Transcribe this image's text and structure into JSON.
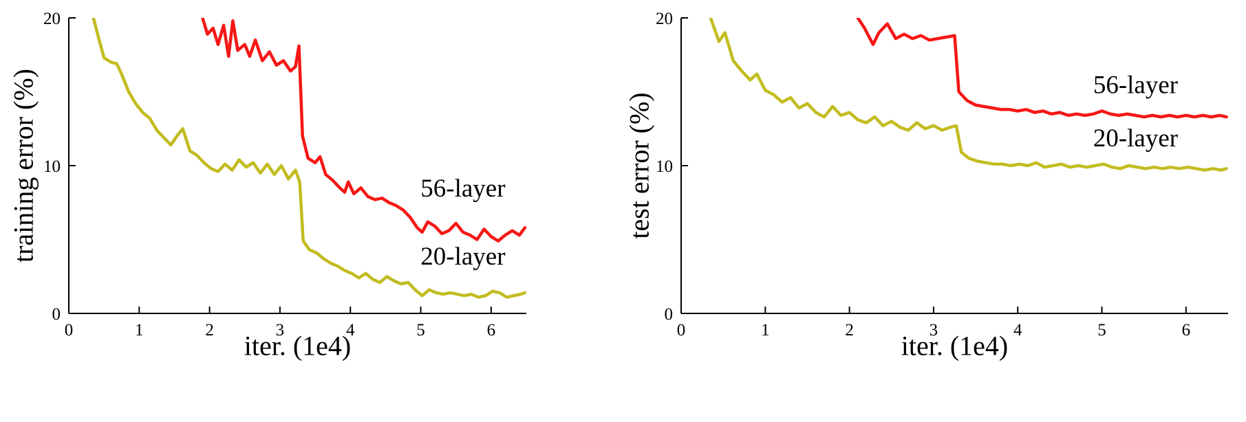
{
  "figure": {
    "background": "#ffffff"
  },
  "colors": {
    "layer56": "#f51715",
    "layer20": "#c2bc20",
    "axis": "#000000"
  },
  "chart_data": [
    {
      "type": "line",
      "title": "",
      "xlabel": "iter. (1e4)",
      "ylabel": "training error (%)",
      "xlim": [
        0,
        6.5
      ],
      "ylim": [
        0,
        20
      ],
      "xticks": [
        0,
        1,
        2,
        3,
        4,
        5,
        6
      ],
      "yticks": [
        0,
        10,
        20
      ],
      "grid": false,
      "legend_position": "inline-annotations",
      "series": [
        {
          "name": "56-layer",
          "color": "#f51715",
          "points": [
            [
              1.82,
              21.5
            ],
            [
              1.9,
              20.0
            ],
            [
              1.97,
              18.9
            ],
            [
              2.05,
              19.3
            ],
            [
              2.12,
              18.2
            ],
            [
              2.2,
              19.5
            ],
            [
              2.27,
              17.4
            ],
            [
              2.33,
              19.8
            ],
            [
              2.4,
              17.8
            ],
            [
              2.5,
              18.2
            ],
            [
              2.57,
              17.4
            ],
            [
              2.65,
              18.5
            ],
            [
              2.75,
              17.1
            ],
            [
              2.85,
              17.7
            ],
            [
              2.95,
              16.8
            ],
            [
              3.05,
              17.1
            ],
            [
              3.15,
              16.4
            ],
            [
              3.22,
              16.7
            ],
            [
              3.27,
              18.1
            ],
            [
              3.32,
              12.0
            ],
            [
              3.4,
              10.5
            ],
            [
              3.5,
              10.2
            ],
            [
              3.57,
              10.6
            ],
            [
              3.65,
              9.4
            ],
            [
              3.75,
              9.0
            ],
            [
              3.85,
              8.5
            ],
            [
              3.92,
              8.2
            ],
            [
              3.97,
              8.9
            ],
            [
              4.05,
              8.1
            ],
            [
              4.15,
              8.5
            ],
            [
              4.25,
              7.9
            ],
            [
              4.35,
              7.7
            ],
            [
              4.45,
              7.8
            ],
            [
              4.55,
              7.5
            ],
            [
              4.65,
              7.3
            ],
            [
              4.75,
              7.0
            ],
            [
              4.85,
              6.5
            ],
            [
              4.95,
              5.8
            ],
            [
              5.02,
              5.5
            ],
            [
              5.1,
              6.2
            ],
            [
              5.2,
              5.9
            ],
            [
              5.3,
              5.4
            ],
            [
              5.4,
              5.6
            ],
            [
              5.5,
              6.1
            ],
            [
              5.6,
              5.5
            ],
            [
              5.7,
              5.3
            ],
            [
              5.8,
              5.0
            ],
            [
              5.9,
              5.7
            ],
            [
              6.0,
              5.2
            ],
            [
              6.1,
              4.9
            ],
            [
              6.2,
              5.3
            ],
            [
              6.3,
              5.6
            ],
            [
              6.4,
              5.3
            ],
            [
              6.48,
              5.8
            ]
          ]
        },
        {
          "name": "20-layer",
          "color": "#c2bc20",
          "points": [
            [
              0.3,
              21.5
            ],
            [
              0.35,
              20.0
            ],
            [
              0.42,
              18.7
            ],
            [
              0.5,
              17.3
            ],
            [
              0.6,
              17.0
            ],
            [
              0.68,
              16.9
            ],
            [
              0.75,
              16.2
            ],
            [
              0.85,
              15.0
            ],
            [
              0.95,
              14.2
            ],
            [
              1.05,
              13.6
            ],
            [
              1.15,
              13.2
            ],
            [
              1.25,
              12.4
            ],
            [
              1.35,
              11.9
            ],
            [
              1.45,
              11.4
            ],
            [
              1.55,
              12.1
            ],
            [
              1.62,
              12.5
            ],
            [
              1.72,
              11.0
            ],
            [
              1.82,
              10.7
            ],
            [
              1.92,
              10.2
            ],
            [
              2.02,
              9.8
            ],
            [
              2.12,
              9.6
            ],
            [
              2.22,
              10.1
            ],
            [
              2.32,
              9.7
            ],
            [
              2.42,
              10.4
            ],
            [
              2.52,
              9.9
            ],
            [
              2.62,
              10.2
            ],
            [
              2.72,
              9.5
            ],
            [
              2.82,
              10.1
            ],
            [
              2.92,
              9.4
            ],
            [
              3.02,
              10.0
            ],
            [
              3.12,
              9.1
            ],
            [
              3.22,
              9.7
            ],
            [
              3.28,
              8.9
            ],
            [
              3.33,
              4.9
            ],
            [
              3.42,
              4.3
            ],
            [
              3.52,
              4.1
            ],
            [
              3.62,
              3.7
            ],
            [
              3.72,
              3.4
            ],
            [
              3.82,
              3.2
            ],
            [
              3.92,
              2.9
            ],
            [
              4.02,
              2.7
            ],
            [
              4.12,
              2.4
            ],
            [
              4.22,
              2.7
            ],
            [
              4.32,
              2.3
            ],
            [
              4.42,
              2.1
            ],
            [
              4.52,
              2.5
            ],
            [
              4.62,
              2.2
            ],
            [
              4.72,
              2.0
            ],
            [
              4.82,
              2.1
            ],
            [
              4.92,
              1.6
            ],
            [
              5.02,
              1.2
            ],
            [
              5.12,
              1.6
            ],
            [
              5.22,
              1.4
            ],
            [
              5.32,
              1.3
            ],
            [
              5.42,
              1.4
            ],
            [
              5.52,
              1.3
            ],
            [
              5.62,
              1.2
            ],
            [
              5.72,
              1.3
            ],
            [
              5.82,
              1.1
            ],
            [
              5.92,
              1.2
            ],
            [
              6.02,
              1.5
            ],
            [
              6.12,
              1.4
            ],
            [
              6.22,
              1.1
            ],
            [
              6.32,
              1.2
            ],
            [
              6.42,
              1.3
            ],
            [
              6.48,
              1.4
            ]
          ]
        }
      ],
      "annotations": [
        {
          "text": "56-layer",
          "x": 5.6,
          "y": 7.9,
          "color": "#000000"
        },
        {
          "text": "20-layer",
          "x": 5.6,
          "y": 3.3,
          "color": "#000000"
        }
      ]
    },
    {
      "type": "line",
      "title": "",
      "xlabel": "iter. (1e4)",
      "ylabel": "test error (%)",
      "xlim": [
        0,
        6.5
      ],
      "ylim": [
        0,
        20
      ],
      "xticks": [
        0,
        1,
        2,
        3,
        4,
        5,
        6
      ],
      "yticks": [
        0,
        10,
        20
      ],
      "grid": false,
      "legend_position": "inline-annotations",
      "series": [
        {
          "name": "56-layer",
          "color": "#f51715",
          "points": [
            [
              2.02,
              21.5
            ],
            [
              2.1,
              20.0
            ],
            [
              2.18,
              19.3
            ],
            [
              2.28,
              18.2
            ],
            [
              2.35,
              19.0
            ],
            [
              2.45,
              19.6
            ],
            [
              2.55,
              18.6
            ],
            [
              2.65,
              18.9
            ],
            [
              2.75,
              18.6
            ],
            [
              2.85,
              18.8
            ],
            [
              2.95,
              18.5
            ],
            [
              3.05,
              18.6
            ],
            [
              3.15,
              18.7
            ],
            [
              3.25,
              18.8
            ],
            [
              3.3,
              15.0
            ],
            [
              3.4,
              14.4
            ],
            [
              3.5,
              14.1
            ],
            [
              3.6,
              14.0
            ],
            [
              3.7,
              13.9
            ],
            [
              3.8,
              13.8
            ],
            [
              3.9,
              13.8
            ],
            [
              4.0,
              13.7
            ],
            [
              4.1,
              13.8
            ],
            [
              4.2,
              13.6
            ],
            [
              4.3,
              13.7
            ],
            [
              4.4,
              13.5
            ],
            [
              4.5,
              13.6
            ],
            [
              4.6,
              13.4
            ],
            [
              4.7,
              13.5
            ],
            [
              4.8,
              13.4
            ],
            [
              4.9,
              13.5
            ],
            [
              5.0,
              13.7
            ],
            [
              5.1,
              13.5
            ],
            [
              5.2,
              13.4
            ],
            [
              5.3,
              13.5
            ],
            [
              5.4,
              13.4
            ],
            [
              5.5,
              13.3
            ],
            [
              5.6,
              13.4
            ],
            [
              5.7,
              13.3
            ],
            [
              5.8,
              13.4
            ],
            [
              5.9,
              13.3
            ],
            [
              6.0,
              13.4
            ],
            [
              6.1,
              13.3
            ],
            [
              6.2,
              13.4
            ],
            [
              6.3,
              13.3
            ],
            [
              6.4,
              13.4
            ],
            [
              6.48,
              13.3
            ]
          ]
        },
        {
          "name": "20-layer",
          "color": "#c2bc20",
          "points": [
            [
              0.3,
              21.5
            ],
            [
              0.35,
              20.0
            ],
            [
              0.45,
              18.4
            ],
            [
              0.52,
              19.0
            ],
            [
              0.62,
              17.1
            ],
            [
              0.72,
              16.4
            ],
            [
              0.82,
              15.8
            ],
            [
              0.9,
              16.2
            ],
            [
              1.0,
              15.1
            ],
            [
              1.1,
              14.8
            ],
            [
              1.2,
              14.3
            ],
            [
              1.3,
              14.6
            ],
            [
              1.4,
              13.9
            ],
            [
              1.5,
              14.2
            ],
            [
              1.6,
              13.6
            ],
            [
              1.7,
              13.3
            ],
            [
              1.8,
              14.0
            ],
            [
              1.9,
              13.4
            ],
            [
              2.0,
              13.6
            ],
            [
              2.1,
              13.1
            ],
            [
              2.2,
              12.9
            ],
            [
              2.3,
              13.3
            ],
            [
              2.4,
              12.7
            ],
            [
              2.5,
              13.0
            ],
            [
              2.6,
              12.6
            ],
            [
              2.7,
              12.4
            ],
            [
              2.8,
              12.9
            ],
            [
              2.9,
              12.5
            ],
            [
              3.0,
              12.7
            ],
            [
              3.1,
              12.4
            ],
            [
              3.2,
              12.6
            ],
            [
              3.27,
              12.7
            ],
            [
              3.33,
              10.9
            ],
            [
              3.42,
              10.5
            ],
            [
              3.52,
              10.3
            ],
            [
              3.62,
              10.2
            ],
            [
              3.72,
              10.1
            ],
            [
              3.82,
              10.1
            ],
            [
              3.92,
              10.0
            ],
            [
              4.02,
              10.1
            ],
            [
              4.12,
              10.0
            ],
            [
              4.22,
              10.2
            ],
            [
              4.32,
              9.9
            ],
            [
              4.42,
              10.0
            ],
            [
              4.52,
              10.1
            ],
            [
              4.62,
              9.9
            ],
            [
              4.72,
              10.0
            ],
            [
              4.82,
              9.9
            ],
            [
              4.92,
              10.0
            ],
            [
              5.02,
              10.1
            ],
            [
              5.12,
              9.9
            ],
            [
              5.22,
              9.8
            ],
            [
              5.32,
              10.0
            ],
            [
              5.42,
              9.9
            ],
            [
              5.52,
              9.8
            ],
            [
              5.62,
              9.9
            ],
            [
              5.72,
              9.8
            ],
            [
              5.82,
              9.9
            ],
            [
              5.92,
              9.8
            ],
            [
              6.02,
              9.9
            ],
            [
              6.12,
              9.8
            ],
            [
              6.22,
              9.7
            ],
            [
              6.32,
              9.8
            ],
            [
              6.42,
              9.7
            ],
            [
              6.48,
              9.8
            ]
          ]
        }
      ],
      "annotations": [
        {
          "text": "56-layer",
          "x": 5.4,
          "y": 14.9,
          "color": "#000000"
        },
        {
          "text": "20-layer",
          "x": 5.4,
          "y": 11.3,
          "color": "#000000"
        }
      ]
    }
  ]
}
